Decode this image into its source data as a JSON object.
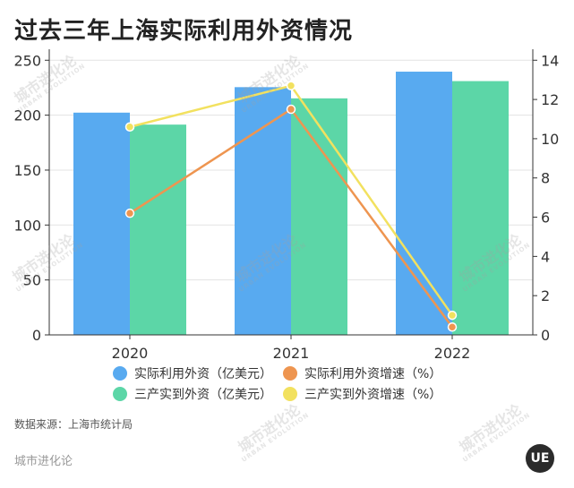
{
  "title": "过去三年上海实际利用外资情况",
  "source": "数据来源：上海市统计局",
  "brand": "城市进化论",
  "logo_text": "UE",
  "watermark": {
    "main": "城市进化论",
    "sub": "URBAN EVOLUTION"
  },
  "colors": {
    "fdi": "#58aaf0",
    "tertiary_fdi": "#5cd6a7",
    "fdi_growth": "#ee9550",
    "tertiary_growth": "#f2e15f"
  },
  "chart_data": {
    "type": "bar",
    "categories": [
      "2020",
      "2021",
      "2022"
    ],
    "ylim_left": [
      0,
      260
    ],
    "ylim_right": [
      0,
      14.56
    ],
    "yticks_left": [
      0,
      50,
      100,
      150,
      200,
      250
    ],
    "yticks_right": [
      0,
      2,
      4,
      6,
      8,
      10,
      12,
      14
    ],
    "legend_position": "bottom",
    "grid": true,
    "bar_series": [
      {
        "name": "实际利用外资（亿美元）",
        "values": [
          202.3,
          225.5,
          239.6
        ],
        "color": "#58aaf0"
      },
      {
        "name": "三产实到外资（亿美元）",
        "values": [
          191.4,
          215.3,
          231.0
        ],
        "color": "#5cd6a7"
      }
    ],
    "line_series": [
      {
        "name": "实际利用外资增速（%）",
        "values": [
          6.2,
          11.5,
          0.4
        ],
        "color": "#ee9550"
      },
      {
        "name": "三产实到外资增速（%）",
        "values": [
          10.6,
          12.7,
          1.0
        ],
        "color": "#f2e15f"
      }
    ]
  }
}
